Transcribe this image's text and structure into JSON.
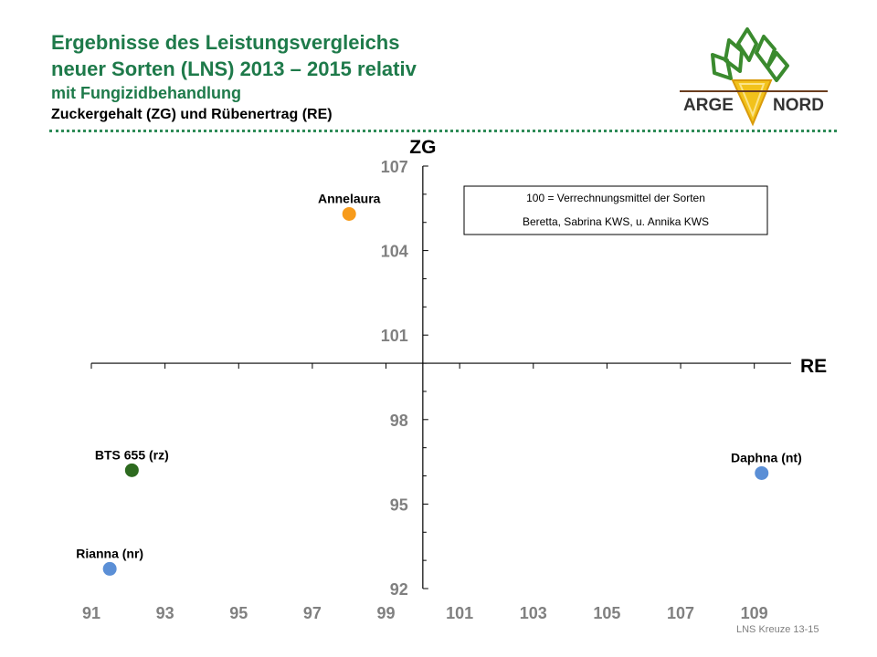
{
  "header": {
    "title_line1": "Ergebnisse des Leistungsvergleichs",
    "title_line2": "neuer Sorten (LNS) 2013 – 2015 relativ",
    "title_line3": "mit Fungizidbehandlung",
    "subtitle": "Zuckergehalt (ZG) und Rübenertrag (RE)"
  },
  "logo": {
    "word_left": "ARGE",
    "word_right": "NORD"
  },
  "footer": {
    "text": "LNS Kreuze 13-15"
  },
  "colors": {
    "title_green": "#1e7a4a",
    "orange": "#f79b1b",
    "dark_green": "#2d6a1f",
    "blue": "#5b8fd6",
    "axis_label_gray": "#808080"
  },
  "chart_data": {
    "type": "scatter",
    "xlabel": "RE",
    "ylabel": "ZG",
    "xlim": [
      91,
      110
    ],
    "ylim": [
      92,
      107
    ],
    "x_cross": 100,
    "y_cross": 100,
    "x_ticks": [
      91,
      93,
      95,
      97,
      99,
      101,
      103,
      105,
      107,
      109
    ],
    "y_ticks": [
      92,
      95,
      98,
      101,
      104,
      107
    ],
    "grid": false,
    "annotation": [
      "100 = Verrechnungsmittel der Sorten",
      "Beretta, Sabrina KWS, u. Annika KWS"
    ],
    "points": [
      {
        "label": "Annelaura",
        "x": 98,
        "y": 105.3,
        "color": "#f79b1b"
      },
      {
        "label": "BTS 655 (rz)",
        "x": 92.1,
        "y": 96.2,
        "color": "#2d6a1f"
      },
      {
        "label": "Daphna (nt)",
        "x": 109.2,
        "y": 96.1,
        "color": "#5b8fd6"
      },
      {
        "label": "Rianna (nr)",
        "x": 91.5,
        "y": 92.7,
        "color": "#5b8fd6"
      }
    ]
  }
}
